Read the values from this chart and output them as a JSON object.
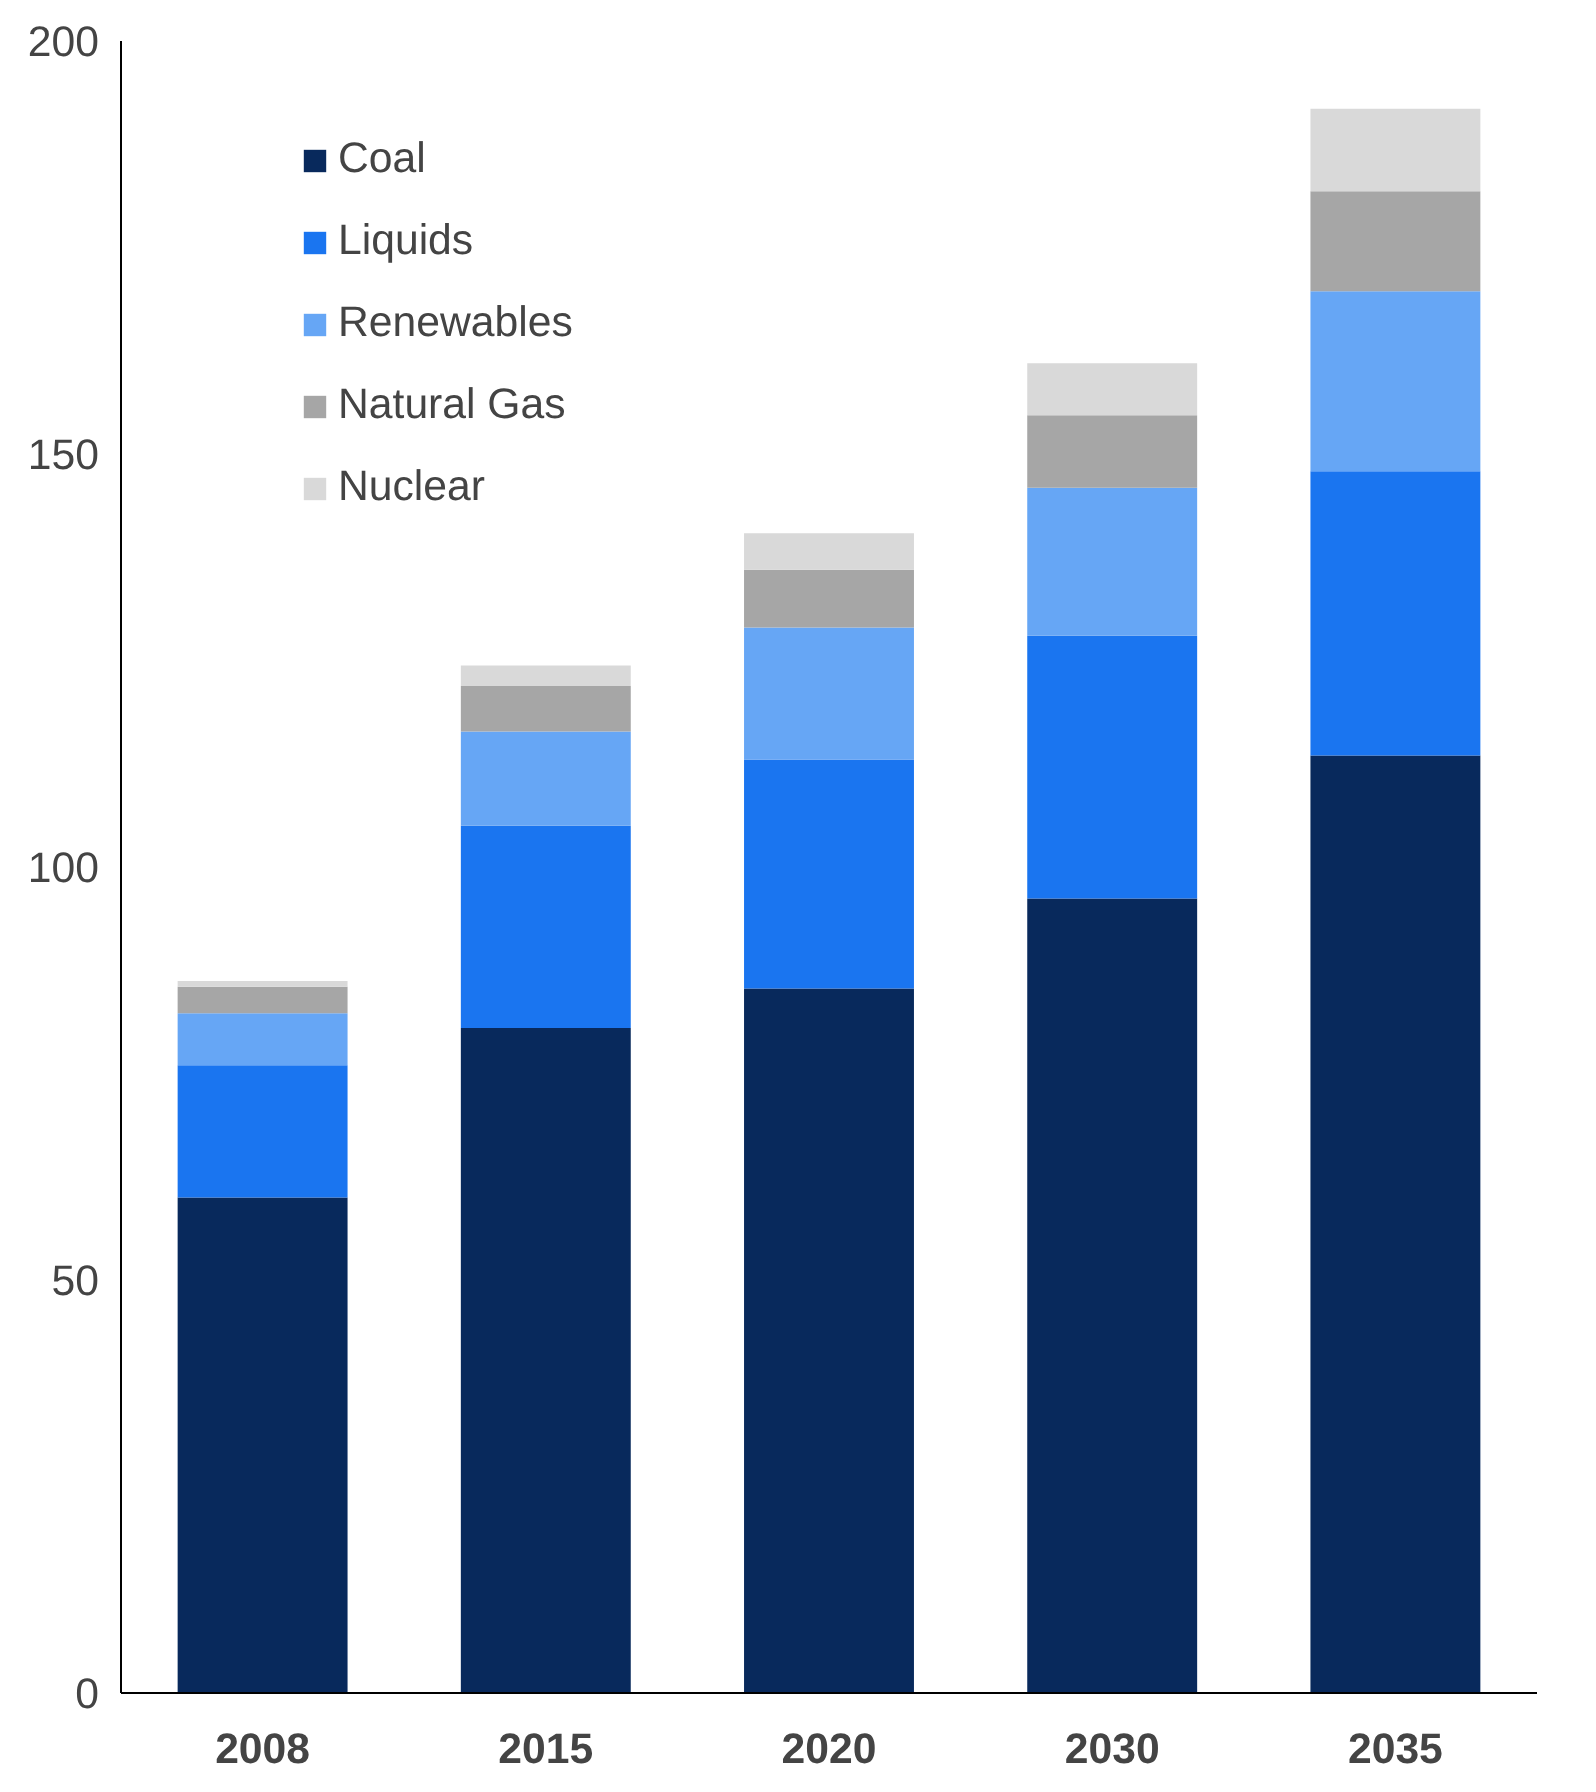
{
  "chart_data": {
    "type": "bar",
    "stacked": true,
    "categories": [
      "2008",
      "2015",
      "2020",
      "2030",
      "2035"
    ],
    "series": [
      {
        "name": "Coal",
        "color": "#08295c",
        "values": [
          60,
          80.5,
          85.3,
          96.2,
          113.5
        ]
      },
      {
        "name": "Liquids",
        "color": "#1a75f0",
        "values": [
          16,
          24.5,
          27.7,
          31.8,
          34.4
        ]
      },
      {
        "name": "Renewables",
        "color": "#66a6f5",
        "values": [
          6.3,
          11.4,
          16,
          17.9,
          21.8
        ]
      },
      {
        "name": "Natural Gas",
        "color": "#a6a6a6",
        "values": [
          3.2,
          5.5,
          7,
          8.8,
          12.1
        ]
      },
      {
        "name": "Nuclear",
        "color": "#d9d9d9",
        "values": [
          0.7,
          2.5,
          4.4,
          6.3,
          10
        ]
      }
    ],
    "ylim": [
      0,
      200
    ],
    "yticks": [
      0,
      50,
      100,
      150,
      200
    ],
    "grid": false,
    "legend": "top left"
  }
}
